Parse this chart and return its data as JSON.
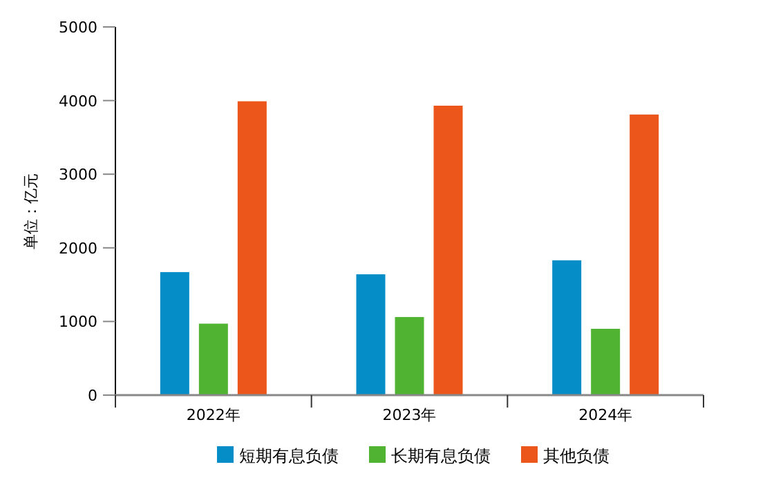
{
  "chart_data": {
    "type": "bar",
    "ylabel": "单位：亿元",
    "categories": [
      "2022年",
      "2023年",
      "2024年"
    ],
    "series": [
      {
        "name": "短期有息负债",
        "color": "#058dc7",
        "values": [
          1680,
          1650,
          1840
        ]
      },
      {
        "name": "长期有息负债",
        "color": "#50b432",
        "values": [
          980,
          1070,
          910
        ]
      },
      {
        "name": "其他负债",
        "color": "#ed561b",
        "values": [
          4000,
          3940,
          3820
        ]
      }
    ],
    "ylim": [
      0,
      5000
    ],
    "yticks": [
      0,
      1000,
      2000,
      3000,
      4000,
      5000
    ],
    "legend": "bottom"
  }
}
